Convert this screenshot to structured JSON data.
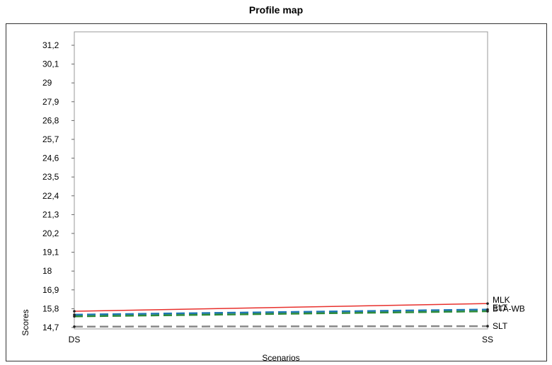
{
  "title": "Profile map",
  "chart_data": {
    "type": "line",
    "title": "Profile map",
    "xlabel": "Scenarios",
    "ylabel": "Scores",
    "categories": [
      "DS",
      "SS"
    ],
    "yticks": [
      "14,7",
      "15,8",
      "16,9",
      "18",
      "19,1",
      "20,2",
      "21,3",
      "22,4",
      "23,5",
      "24,6",
      "25,7",
      "26,8",
      "27,9",
      "29",
      "30,1",
      "31,2"
    ],
    "ylim": [
      14.7,
      31.2
    ],
    "grid": false,
    "legend": "labels at line ends",
    "series": [
      {
        "name": "MLK",
        "values": [
          15.65,
          16.1
        ],
        "color": "#e8302c",
        "dash": "solid"
      },
      {
        "name": "BTA-WB",
        "values": [
          15.45,
          15.75
        ],
        "color": "#1f77b4",
        "dash": "dashed"
      },
      {
        "name": "ELT",
        "values": [
          15.35,
          15.65
        ],
        "color": "#2e8b3a",
        "dash": "dashed"
      },
      {
        "name": "SLT",
        "values": [
          14.75,
          14.78
        ],
        "color": "#888888",
        "dash": "dashed"
      }
    ]
  }
}
